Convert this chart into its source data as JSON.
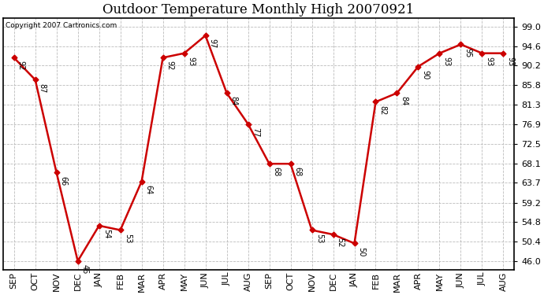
{
  "title": "Outdoor Temperature Monthly High 20070921",
  "copyright": "Copyright 2007 Cartronics.com",
  "categories": [
    "SEP",
    "OCT",
    "NOV",
    "DEC",
    "JAN",
    "FEB",
    "MAR",
    "APR",
    "MAY",
    "JUN",
    "JUL",
    "AUG",
    "SEP",
    "OCT",
    "NOV",
    "DEC",
    "JAN",
    "FEB",
    "MAR",
    "APR",
    "MAY",
    "JUN",
    "JUL",
    "AUG"
  ],
  "values": [
    92,
    87,
    66,
    46,
    54,
    53,
    64,
    92,
    93,
    97,
    84,
    77,
    68,
    68,
    53,
    52,
    50,
    82,
    84,
    90,
    93,
    95,
    93,
    93
  ],
  "yticks": [
    46.0,
    50.4,
    54.8,
    59.2,
    63.7,
    68.1,
    72.5,
    76.9,
    81.3,
    85.8,
    90.2,
    94.6,
    99.0
  ],
  "line_color": "#cc0000",
  "marker": "D",
  "marker_size": 3.5,
  "background_color": "#ffffff",
  "grid_color": "#bbbbbb",
  "title_fontsize": 12,
  "tick_fontsize": 8,
  "annot_fontsize": 7,
  "ylim_min": 44,
  "ylim_max": 101
}
